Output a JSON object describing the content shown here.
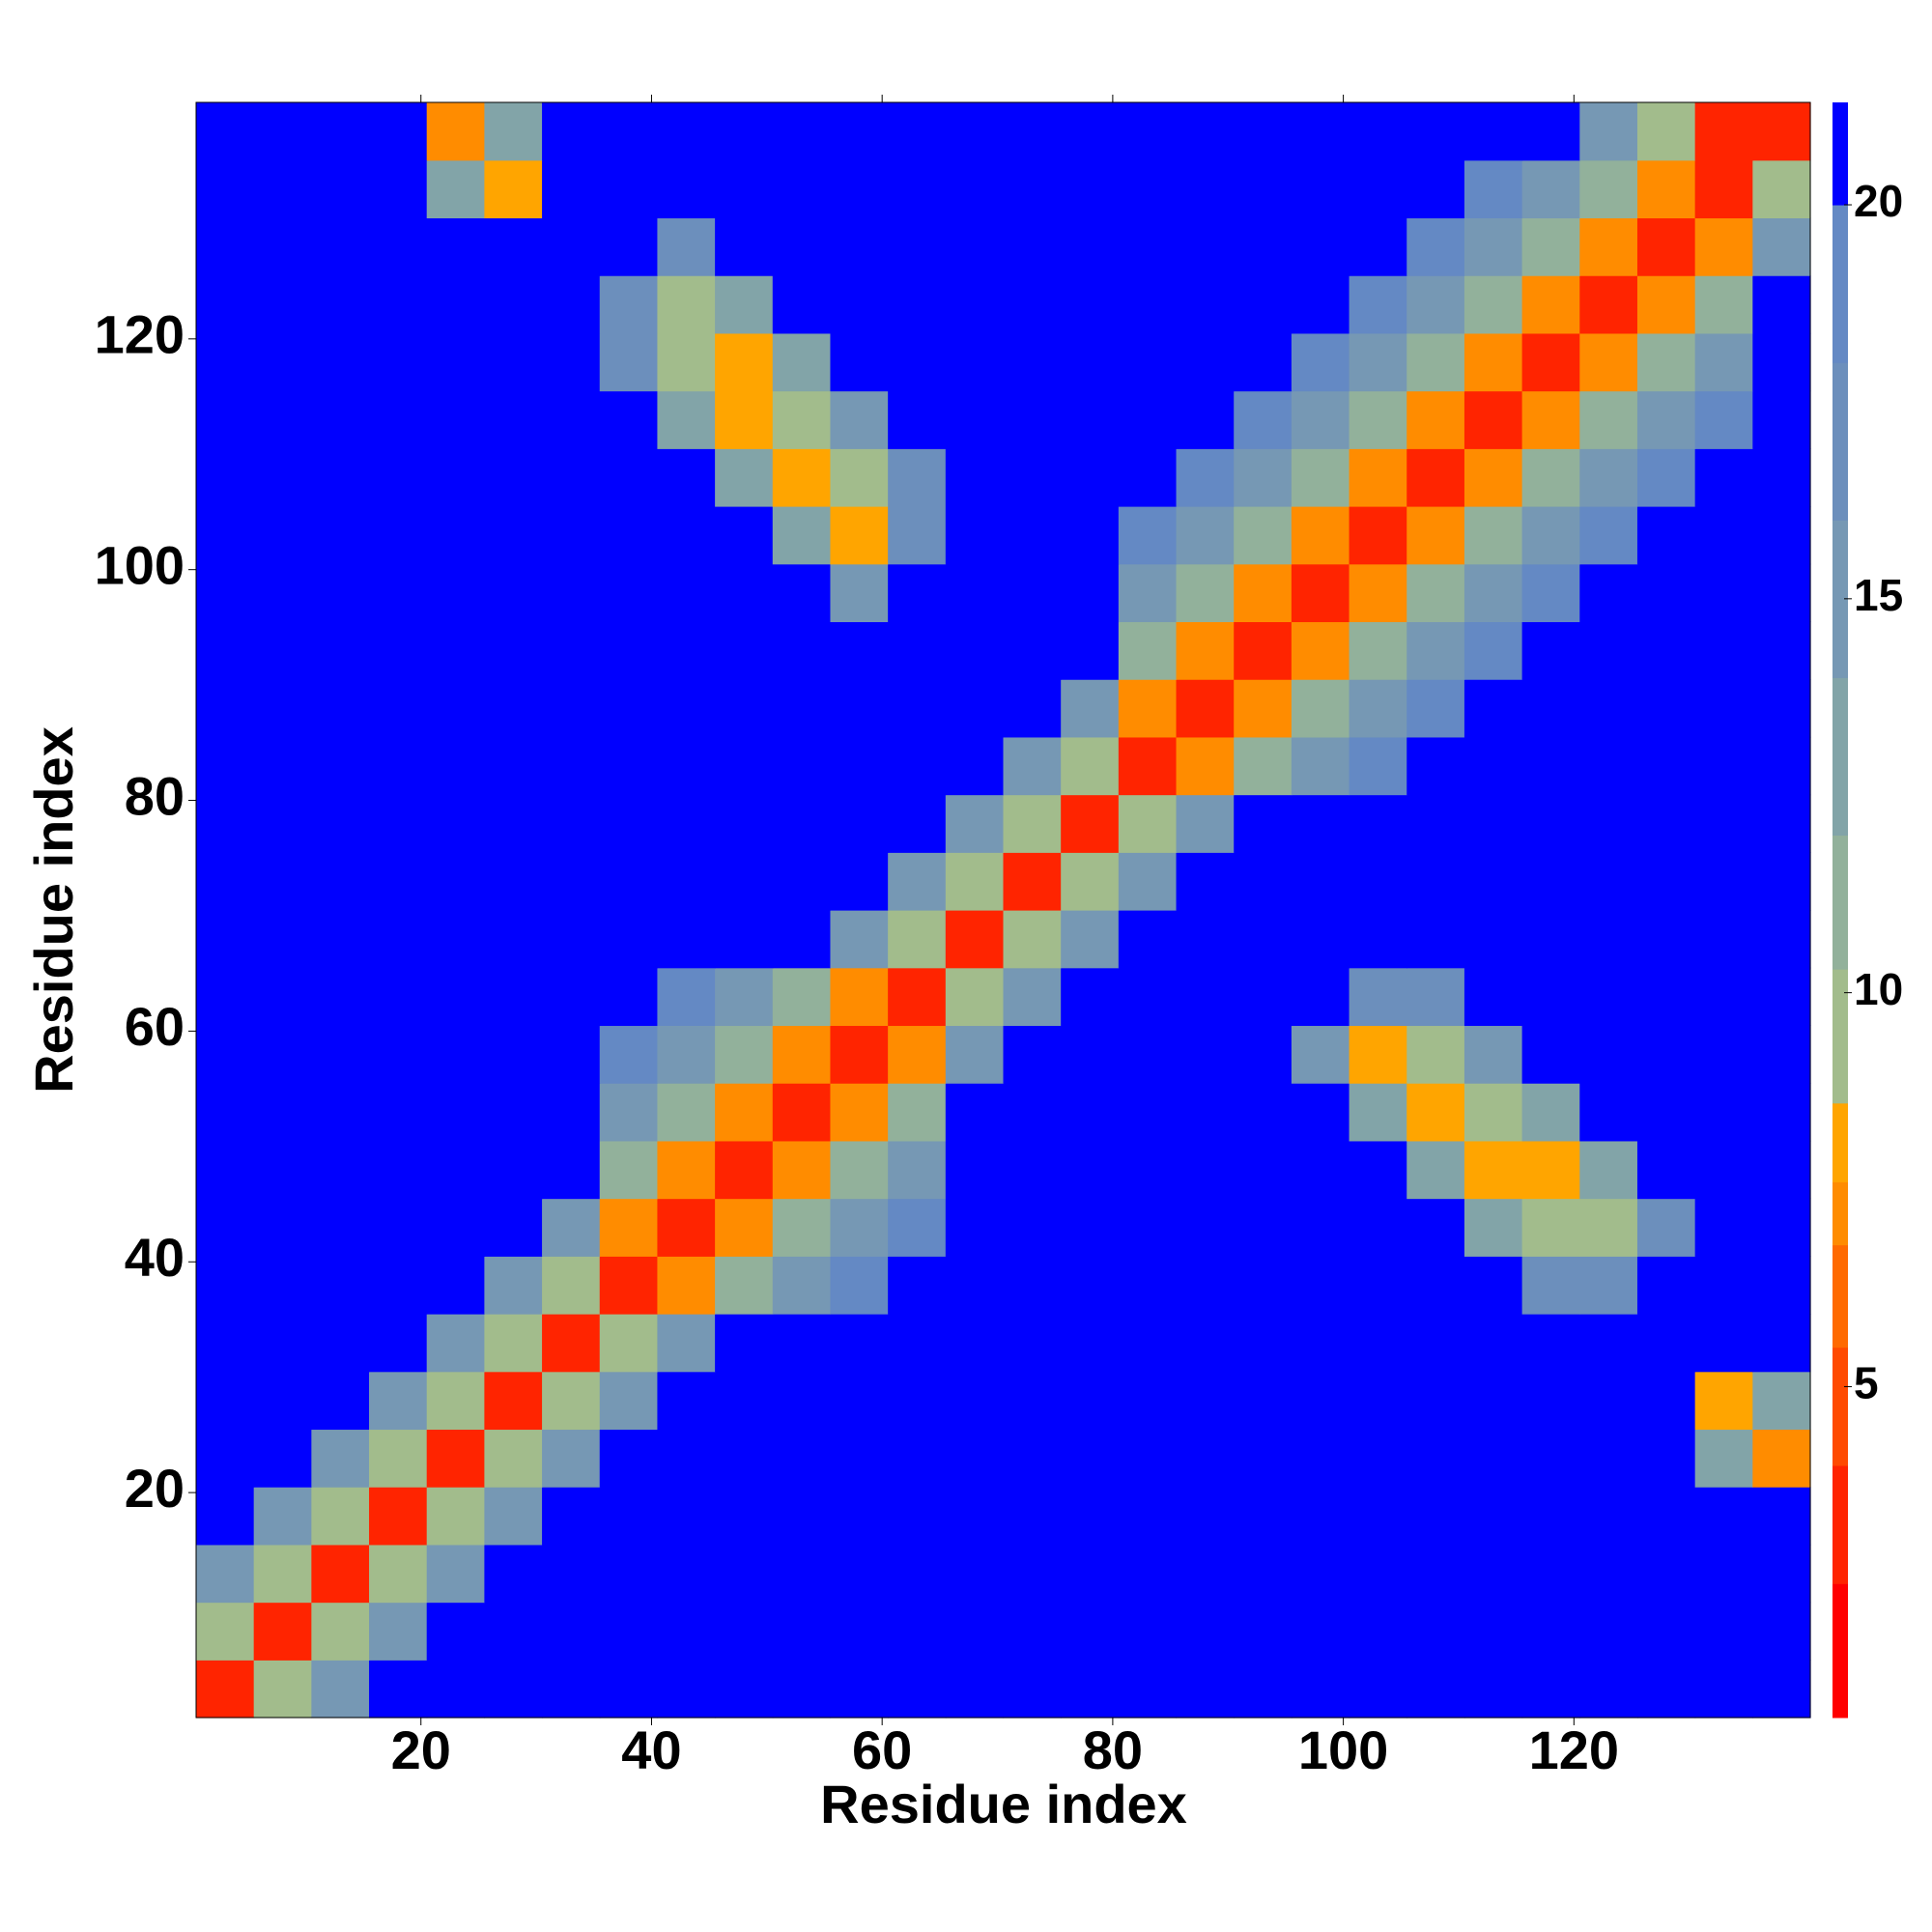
{
  "chart_data": {
    "type": "heatmap",
    "xlabel": "Residue index",
    "ylabel": "Residue index",
    "x": [
      3,
      8,
      13,
      18,
      23,
      28,
      33,
      38,
      43,
      48,
      53,
      58,
      63,
      68,
      73,
      78,
      83,
      88,
      93,
      98,
      103,
      108,
      113,
      118,
      123,
      128,
      133,
      138
    ],
    "y": [
      3,
      8,
      13,
      18,
      23,
      28,
      33,
      38,
      43,
      48,
      53,
      58,
      63,
      68,
      73,
      78,
      83,
      88,
      93,
      98,
      103,
      108,
      113,
      118,
      123,
      128,
      133,
      138
    ],
    "xlim": [
      0.5,
      140.5
    ],
    "ylim": [
      0.5,
      140.5
    ],
    "xticks": [
      20,
      40,
      60,
      80,
      100,
      120
    ],
    "yticks": [
      20,
      40,
      60,
      80,
      100,
      120
    ],
    "colorbar_lim": [
      0.8,
      21.3
    ],
    "colorbar_ticks": [
      5,
      10,
      15,
      20
    ],
    "colorscale": [
      {
        "max": 2.5,
        "color": "#ff0000"
      },
      {
        "max": 4,
        "color": "#ff2400"
      },
      {
        "max": 5.5,
        "color": "#ff4a00"
      },
      {
        "max": 6.8,
        "color": "#ff6a00"
      },
      {
        "max": 7.6,
        "color": "#ff8c00"
      },
      {
        "max": 8.6,
        "color": "#ffa500"
      },
      {
        "max": 10.3,
        "color": "#a2bc8c"
      },
      {
        "max": 12,
        "color": "#92b19b"
      },
      {
        "max": 14,
        "color": "#82a4a8"
      },
      {
        "max": 16,
        "color": "#7698b4"
      },
      {
        "max": 18,
        "color": "#6c8fbc"
      },
      {
        "max": 20,
        "color": "#6489c4"
      },
      {
        "max": 21.3,
        "color": "#0000ff"
      }
    ],
    "z": [
      [
        4,
        9,
        16,
        21,
        21,
        21,
        21,
        21,
        21,
        21,
        21,
        21,
        21,
        21,
        21,
        21,
        21,
        21,
        21,
        21,
        21,
        21,
        21,
        21,
        21,
        21,
        21,
        21
      ],
      [
        9,
        4,
        9,
        16,
        21,
        21,
        21,
        21,
        21,
        21,
        21,
        21,
        21,
        21,
        21,
        21,
        21,
        21,
        21,
        21,
        21,
        21,
        21,
        21,
        21,
        21,
        21,
        21
      ],
      [
        16,
        9,
        4,
        9,
        16,
        21,
        21,
        21,
        21,
        21,
        21,
        21,
        21,
        21,
        21,
        21,
        21,
        21,
        21,
        21,
        21,
        21,
        21,
        21,
        21,
        21,
        21,
        21
      ],
      [
        21,
        16,
        9,
        4,
        9,
        16,
        21,
        21,
        21,
        21,
        21,
        21,
        21,
        21,
        21,
        21,
        21,
        21,
        21,
        21,
        21,
        21,
        21,
        21,
        21,
        21,
        21,
        21
      ],
      [
        21,
        21,
        16,
        9,
        4,
        9,
        16,
        21,
        21,
        21,
        21,
        21,
        21,
        21,
        21,
        21,
        21,
        21,
        21,
        21,
        21,
        21,
        21,
        21,
        21,
        21,
        13,
        7
      ],
      [
        21,
        21,
        21,
        16,
        9,
        4,
        9,
        16,
        21,
        21,
        21,
        21,
        21,
        21,
        21,
        21,
        21,
        21,
        21,
        21,
        21,
        21,
        21,
        21,
        21,
        21,
        8,
        13
      ],
      [
        21,
        21,
        21,
        21,
        16,
        9,
        4,
        9,
        16,
        21,
        21,
        21,
        21,
        21,
        21,
        21,
        21,
        21,
        21,
        21,
        21,
        21,
        21,
        21,
        21,
        21,
        21,
        21
      ],
      [
        21,
        21,
        21,
        21,
        21,
        16,
        9,
        4,
        7,
        12,
        16,
        19,
        21,
        21,
        21,
        21,
        21,
        21,
        21,
        21,
        21,
        21,
        21,
        17,
        17,
        21,
        21,
        21
      ],
      [
        21,
        21,
        21,
        21,
        21,
        21,
        16,
        7,
        4,
        7,
        12,
        16,
        19,
        21,
        21,
        21,
        21,
        21,
        21,
        21,
        21,
        21,
        14,
        9,
        10,
        17,
        21,
        21
      ],
      [
        21,
        21,
        21,
        21,
        21,
        21,
        21,
        12,
        7,
        4,
        7,
        12,
        16,
        21,
        21,
        21,
        21,
        21,
        21,
        21,
        21,
        14,
        8,
        8,
        14,
        21,
        21,
        21
      ],
      [
        21,
        21,
        21,
        21,
        21,
        21,
        21,
        16,
        12,
        7,
        4,
        7,
        12,
        21,
        21,
        21,
        21,
        21,
        21,
        21,
        14,
        8,
        9,
        14,
        21,
        21,
        21,
        21
      ],
      [
        21,
        21,
        21,
        21,
        21,
        21,
        21,
        19,
        16,
        12,
        7,
        4,
        7,
        16,
        21,
        21,
        21,
        21,
        21,
        16,
        8,
        10,
        15,
        21,
        21,
        21,
        21,
        21
      ],
      [
        21,
        21,
        21,
        21,
        21,
        21,
        21,
        21,
        19,
        16,
        12,
        7,
        4,
        9,
        16,
        21,
        21,
        21,
        21,
        21,
        17,
        18,
        21,
        21,
        21,
        21,
        21,
        21
      ],
      [
        21,
        21,
        21,
        21,
        21,
        21,
        21,
        21,
        21,
        21,
        21,
        16,
        9,
        4,
        9,
        16,
        21,
        21,
        21,
        21,
        21,
        21,
        21,
        21,
        21,
        21,
        21,
        21
      ],
      [
        21,
        21,
        21,
        21,
        21,
        21,
        21,
        21,
        21,
        21,
        21,
        21,
        16,
        9,
        4,
        9,
        16,
        21,
        21,
        21,
        21,
        21,
        21,
        21,
        21,
        21,
        21,
        21
      ],
      [
        21,
        21,
        21,
        21,
        21,
        21,
        21,
        21,
        21,
        21,
        21,
        21,
        21,
        16,
        9,
        4,
        9,
        16,
        21,
        21,
        21,
        21,
        21,
        21,
        21,
        21,
        21,
        21
      ],
      [
        21,
        21,
        21,
        21,
        21,
        21,
        21,
        21,
        21,
        21,
        21,
        21,
        21,
        21,
        16,
        9,
        4,
        7,
        12,
        16,
        19,
        21,
        21,
        21,
        21,
        21,
        21,
        21
      ],
      [
        21,
        21,
        21,
        21,
        21,
        21,
        21,
        21,
        21,
        21,
        21,
        21,
        21,
        21,
        21,
        16,
        7,
        4,
        7,
        12,
        16,
        19,
        21,
        21,
        21,
        21,
        21,
        21
      ],
      [
        21,
        21,
        21,
        21,
        21,
        21,
        21,
        21,
        21,
        21,
        21,
        21,
        21,
        21,
        21,
        21,
        12,
        7,
        4,
        7,
        12,
        16,
        19,
        21,
        21,
        21,
        21,
        21
      ],
      [
        21,
        21,
        21,
        21,
        21,
        21,
        21,
        21,
        21,
        21,
        21,
        16,
        21,
        21,
        21,
        21,
        16,
        12,
        7,
        4,
        7,
        12,
        16,
        19,
        21,
        21,
        21,
        21
      ],
      [
        21,
        21,
        21,
        21,
        21,
        21,
        21,
        21,
        21,
        21,
        14,
        8,
        17,
        21,
        21,
        21,
        19,
        16,
        12,
        7,
        4,
        7,
        12,
        16,
        19,
        21,
        21,
        21
      ],
      [
        21,
        21,
        21,
        21,
        21,
        21,
        21,
        21,
        21,
        14,
        8,
        10,
        18,
        21,
        21,
        21,
        21,
        19,
        16,
        12,
        7,
        4,
        7,
        12,
        16,
        19,
        21,
        21
      ],
      [
        21,
        21,
        21,
        21,
        21,
        21,
        21,
        21,
        14,
        8,
        9,
        15,
        21,
        21,
        21,
        21,
        21,
        21,
        19,
        16,
        12,
        7,
        4,
        7,
        12,
        16,
        19,
        21
      ],
      [
        21,
        21,
        21,
        21,
        21,
        21,
        21,
        17,
        9,
        8,
        14,
        21,
        21,
        21,
        21,
        21,
        21,
        21,
        21,
        19,
        16,
        12,
        7,
        4,
        7,
        12,
        16,
        21
      ],
      [
        21,
        21,
        21,
        21,
        21,
        21,
        21,
        17,
        10,
        14,
        21,
        21,
        21,
        21,
        21,
        21,
        21,
        21,
        21,
        21,
        19,
        16,
        12,
        7,
        4,
        7,
        12,
        21
      ],
      [
        21,
        21,
        21,
        21,
        21,
        21,
        21,
        21,
        17,
        21,
        21,
        21,
        21,
        21,
        21,
        21,
        21,
        21,
        21,
        21,
        21,
        19,
        16,
        12,
        7,
        4,
        7,
        16
      ],
      [
        21,
        21,
        21,
        21,
        13,
        8,
        21,
        21,
        21,
        21,
        21,
        21,
        21,
        21,
        21,
        21,
        21,
        21,
        21,
        21,
        21,
        21,
        19,
        16,
        12,
        7,
        4,
        9
      ],
      [
        21,
        21,
        21,
        21,
        7,
        13,
        21,
        21,
        21,
        21,
        21,
        21,
        21,
        21,
        21,
        21,
        21,
        21,
        21,
        21,
        21,
        21,
        21,
        21,
        16,
        9,
        4,
        4
      ]
    ]
  }
}
